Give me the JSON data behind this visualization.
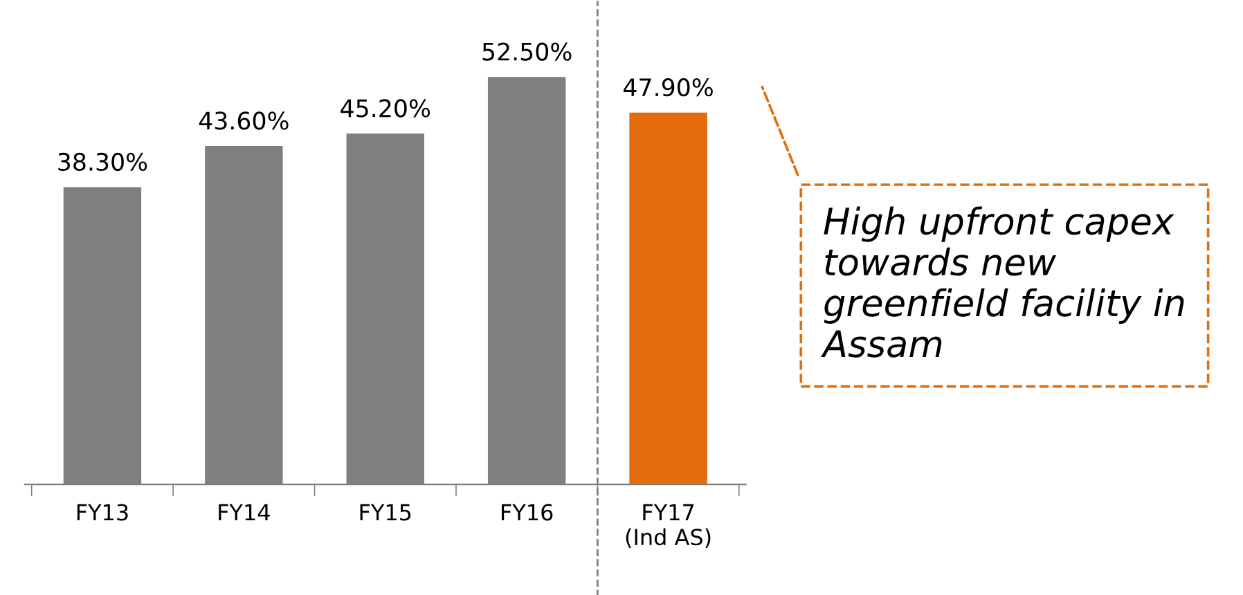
{
  "chart_data": {
    "type": "bar",
    "categories": [
      "FY13",
      "FY14",
      "FY15",
      "FY16",
      "FY17\n(Ind AS)"
    ],
    "values": [
      38.3,
      43.6,
      45.2,
      52.5,
      47.9
    ],
    "colors": [
      "#7f7f7f",
      "#7f7f7f",
      "#7f7f7f",
      "#7f7f7f",
      "#e46c0a"
    ],
    "value_labels": [
      "38.30%",
      "43.60%",
      "45.20%",
      "52.50%",
      "47.90%"
    ],
    "annotations": [
      "High upfront capex\ntowards new\ngreenfield facility in\nAssam"
    ],
    "grid": false,
    "legend": false,
    "tick_labels": "x"
  }
}
